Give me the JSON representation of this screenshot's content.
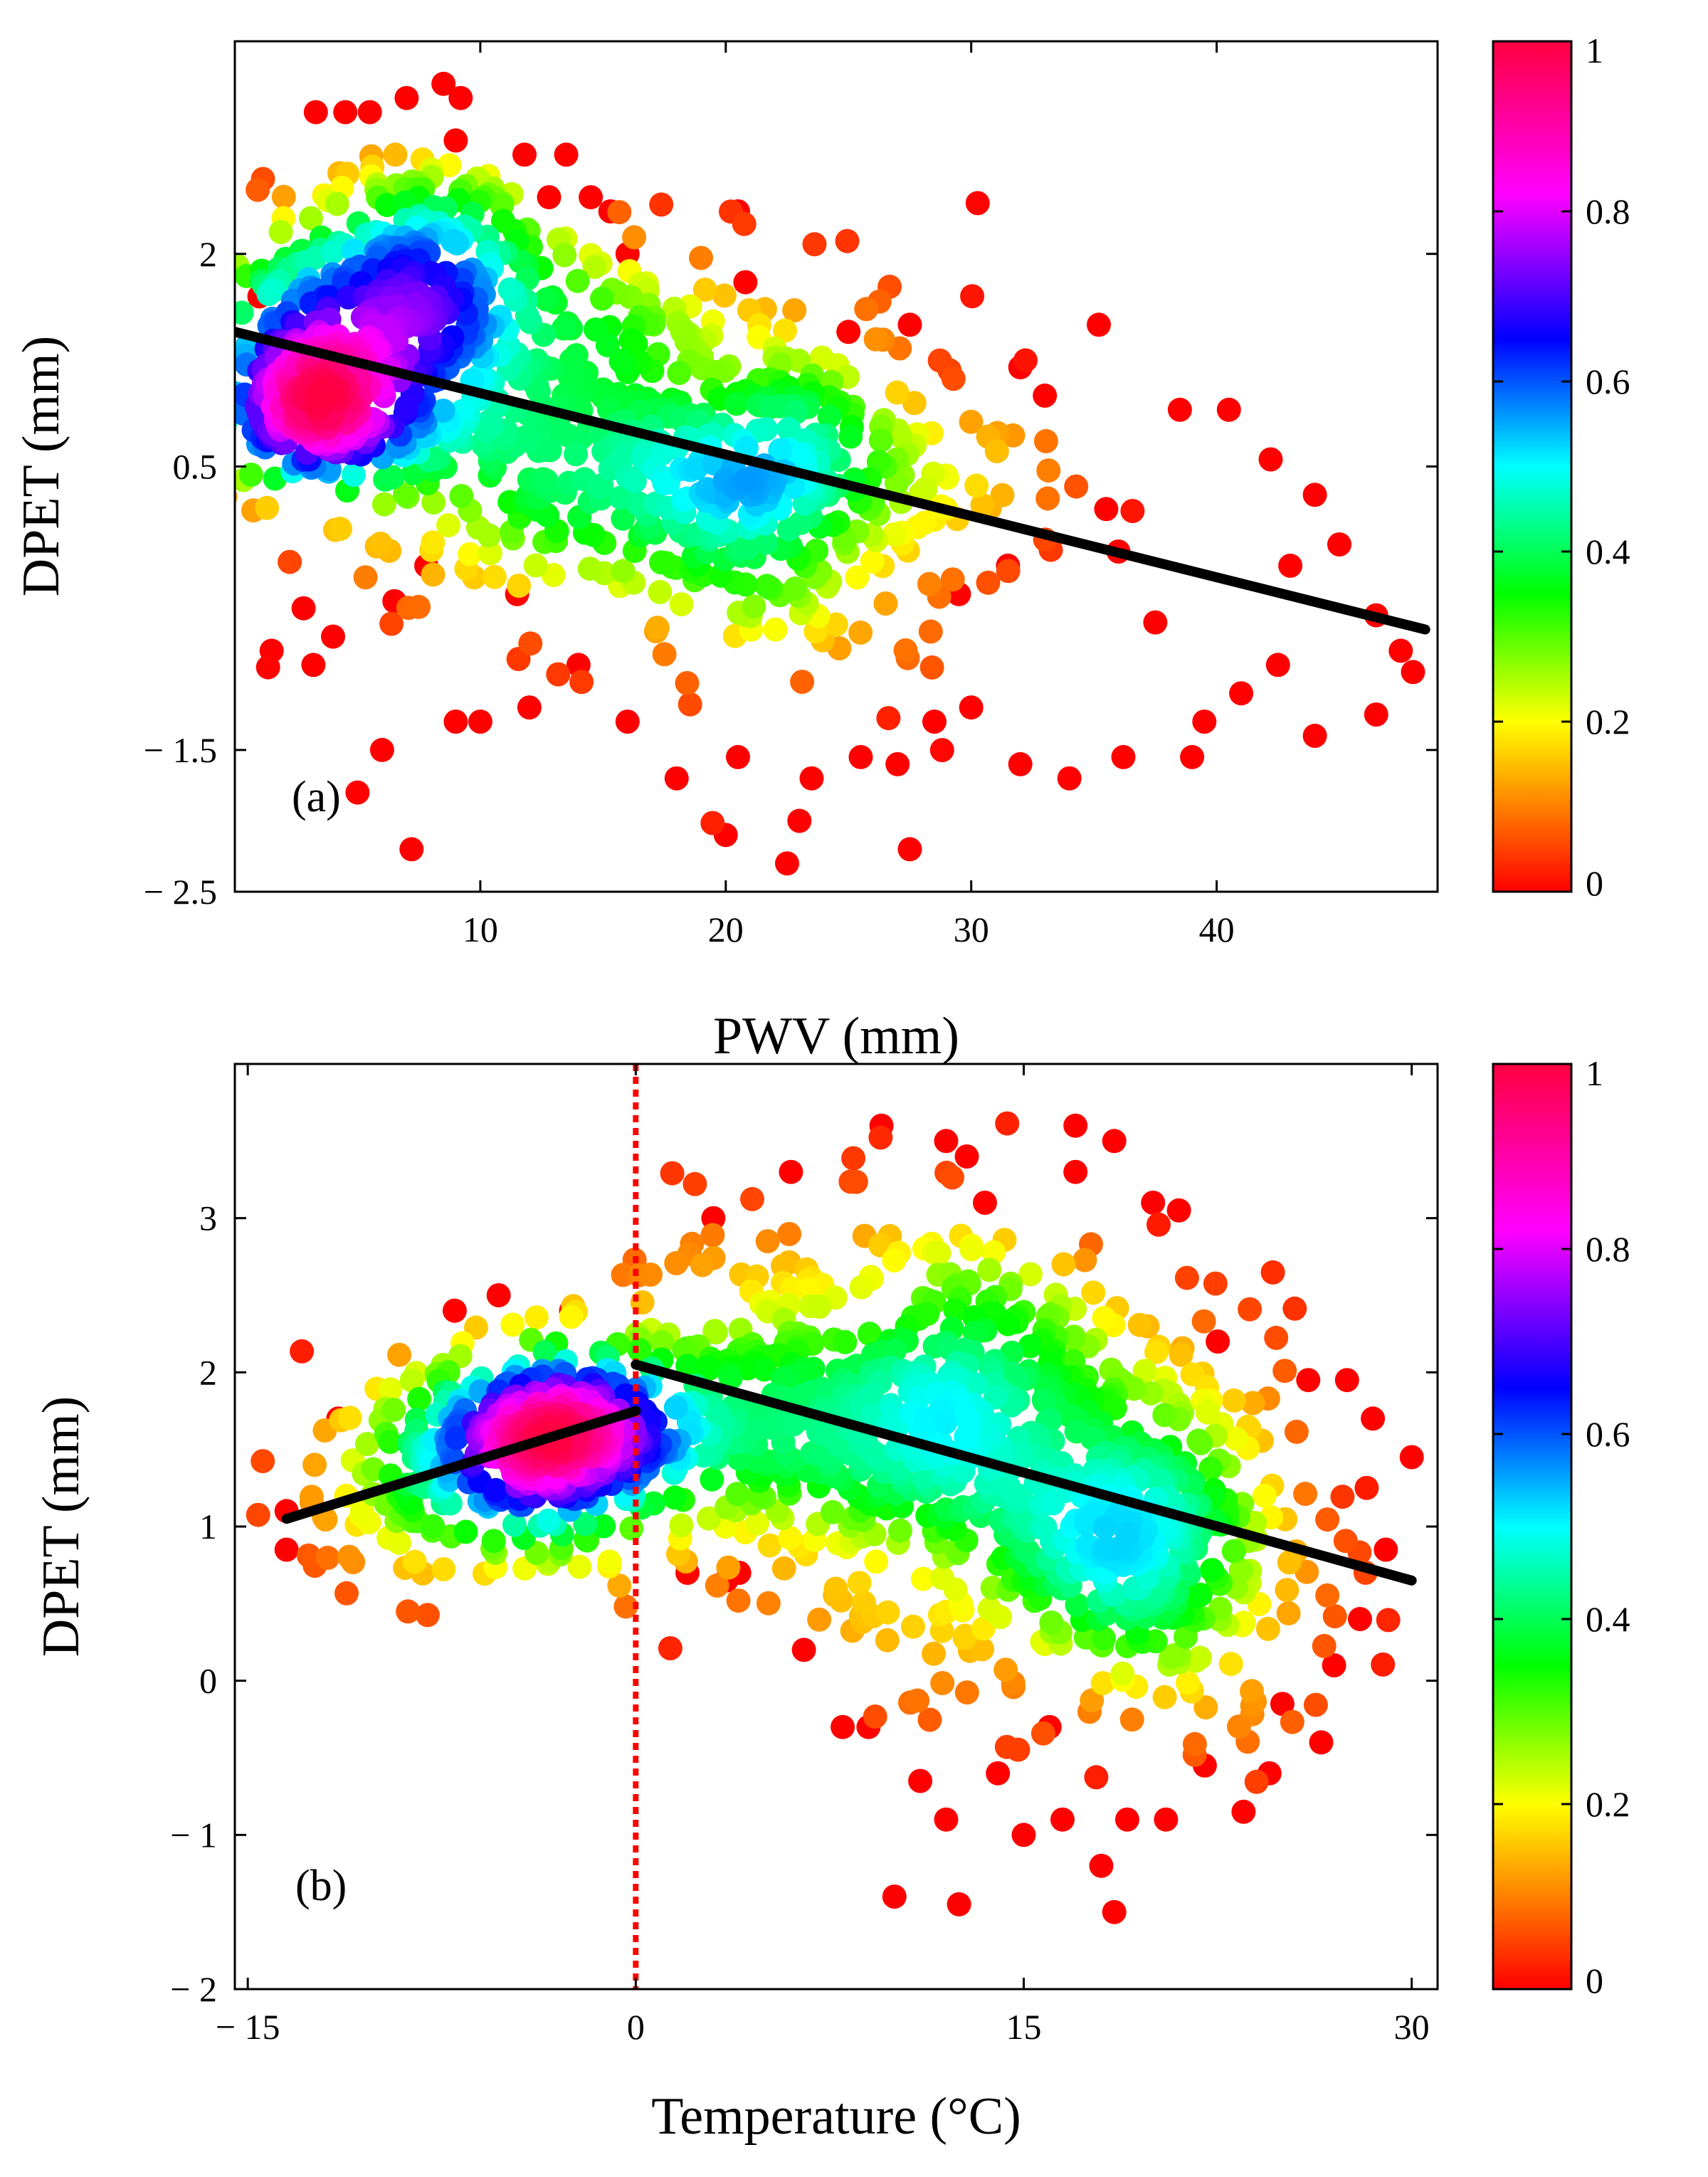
{
  "figure": {
    "colorbar_ticks": [
      "0",
      "0.2",
      "0.4",
      "0.6",
      "0.8",
      "1"
    ]
  },
  "colorbar": {
    "stops": [
      {
        "v": 0.0,
        "c": "#ff0000"
      },
      {
        "v": 0.1,
        "c": "#ff8000"
      },
      {
        "v": 0.2,
        "c": "#ffff00"
      },
      {
        "v": 0.35,
        "c": "#00ff00"
      },
      {
        "v": 0.5,
        "c": "#00ffff"
      },
      {
        "v": 0.65,
        "c": "#0000ff"
      },
      {
        "v": 0.82,
        "c": "#ff00ff"
      },
      {
        "v": 1.0,
        "c": "#ff0040"
      }
    ]
  },
  "chart_data": [
    {
      "type": "scatter",
      "panel": "(a)",
      "xlabel": "PWV (mm)",
      "ylabel": "DPET (mm)",
      "xlim": [
        0,
        49
      ],
      "ylim": [
        -2.5,
        3.5
      ],
      "xticks": [
        10,
        20,
        30,
        40
      ],
      "xtick_labels": [
        "10",
        "20",
        "30",
        "40"
      ],
      "yticks": [
        2,
        0.5,
        -1.5,
        -2.5
      ],
      "ytick_labels": [
        "2",
        "0.5",
        "− 1.5",
        "− 2.5"
      ],
      "color_scale": "point density (0–1)",
      "fit_lines": [
        {
          "x": [
            0,
            48.5
          ],
          "y": [
            1.45,
            -0.65
          ]
        }
      ],
      "clusters": [
        {
          "cx": 6,
          "cy": 1.6,
          "sx": 3,
          "sy": 0.6,
          "n": 220
        },
        {
          "cx": 12,
          "cy": 0.9,
          "sx": 6,
          "sy": 0.6,
          "n": 380
        },
        {
          "cx": 22,
          "cy": 0.3,
          "sx": 5,
          "sy": 0.6,
          "n": 320
        },
        {
          "cx": 8,
          "cy": 2.0,
          "sx": 3,
          "sy": 0.4,
          "n": 90
        }
      ],
      "core": {
        "cx": 3.2,
        "cy": 1.0,
        "sx": 1.4,
        "sy": 0.25,
        "n": 170
      },
      "outliers": [
        [
          1.0,
          1.7
        ],
        [
          3.3,
          3.0
        ],
        [
          4.5,
          3.0
        ],
        [
          5.5,
          3.0
        ],
        [
          7.0,
          3.1
        ],
        [
          8.5,
          3.2
        ],
        [
          9.2,
          3.1
        ],
        [
          9.0,
          2.8
        ],
        [
          11.8,
          2.7
        ],
        [
          13.5,
          2.7
        ],
        [
          14.5,
          2.4
        ],
        [
          15.3,
          2.3
        ],
        [
          12.8,
          2.4
        ],
        [
          20.5,
          2.3
        ],
        [
          20.8,
          1.8
        ],
        [
          16,
          2.0
        ],
        [
          25,
          1.45
        ],
        [
          27.5,
          1.5
        ],
        [
          32,
          1.2
        ],
        [
          33,
          1.0
        ],
        [
          35.2,
          1.5
        ],
        [
          38.5,
          0.9
        ],
        [
          40.5,
          0.9
        ],
        [
          42.2,
          0.55
        ],
        [
          44,
          0.3
        ],
        [
          45,
          -0.05
        ],
        [
          46.5,
          -0.55
        ],
        [
          47.5,
          -0.8
        ],
        [
          48,
          -0.95
        ],
        [
          44,
          -1.4
        ],
        [
          42.5,
          -0.9
        ],
        [
          41,
          -1.1
        ],
        [
          39,
          -1.55
        ],
        [
          34,
          -1.7
        ],
        [
          32,
          -1.6
        ],
        [
          30,
          -1.2
        ],
        [
          28.5,
          -1.3
        ],
        [
          27.5,
          -2.2
        ],
        [
          27,
          -1.6
        ],
        [
          25.5,
          -1.55
        ],
        [
          23.5,
          -1.7
        ],
        [
          23,
          -2.0
        ],
        [
          22.5,
          -2.3
        ],
        [
          20.5,
          -1.55
        ],
        [
          20,
          -2.1
        ],
        [
          18,
          -1.7
        ],
        [
          16,
          -1.3
        ],
        [
          14,
          -0.9
        ],
        [
          12,
          -1.2
        ],
        [
          10,
          -1.3
        ],
        [
          9,
          -1.3
        ],
        [
          6,
          -1.5
        ],
        [
          5,
          -1.8
        ],
        [
          4,
          -0.7
        ],
        [
          3.2,
          -0.9
        ],
        [
          1.5,
          -0.8
        ],
        [
          2.8,
          -0.5
        ],
        [
          7.2,
          -2.2
        ],
        [
          7.8,
          -0.2
        ],
        [
          6.5,
          -0.45
        ],
        [
          11.5,
          -0.4
        ],
        [
          36,
          -0.1
        ],
        [
          37.5,
          -0.6
        ],
        [
          39.5,
          -1.3
        ],
        [
          29.5,
          -0.4
        ],
        [
          31.5,
          -0.2
        ],
        [
          35.5,
          0.2
        ],
        [
          43,
          -0.2
        ],
        [
          46.5,
          -1.25
        ],
        [
          36.2,
          -1.55
        ]
      ]
    },
    {
      "type": "scatter",
      "panel": "(b)",
      "xlabel": "Temperature (°C)",
      "ylabel": "DPET (mm)",
      "xlim": [
        -15.5,
        31
      ],
      "ylim": [
        -2,
        4
      ],
      "xticks": [
        -15,
        0,
        15,
        30
      ],
      "xtick_labels": [
        "− 15",
        "0",
        "15",
        "30"
      ],
      "yticks": [
        3,
        2,
        1,
        0,
        -1,
        -2
      ],
      "ytick_labels": [
        "3",
        "2",
        "1",
        "0",
        "− 1",
        "− 2"
      ],
      "color_scale": "point density (0–1)",
      "reference_line_x": 0,
      "reference_line_color": "#ff0000",
      "fit_lines": [
        {
          "x": [
            -13.5,
            0
          ],
          "y": [
            1.05,
            1.75
          ]
        },
        {
          "x": [
            0,
            30
          ],
          "y": [
            2.05,
            0.65
          ]
        }
      ],
      "clusters": [
        {
          "cx": -3,
          "cy": 1.55,
          "sx": 3,
          "sy": 0.35,
          "n": 260
        },
        {
          "cx": 6,
          "cy": 1.8,
          "sx": 4,
          "sy": 0.6,
          "n": 320
        },
        {
          "cx": 14,
          "cy": 1.6,
          "sx": 4,
          "sy": 0.7,
          "n": 360
        },
        {
          "cx": 20,
          "cy": 0.9,
          "sx": 3.5,
          "sy": 0.6,
          "n": 320
        },
        {
          "cx": -9,
          "cy": 1.3,
          "sx": 2.5,
          "sy": 0.35,
          "n": 90
        }
      ],
      "core": {
        "cx": -3.5,
        "cy": 1.55,
        "sx": 1.8,
        "sy": 0.18,
        "n": 150
      },
      "outliers": [
        [
          -13.5,
          1.1
        ],
        [
          -13.5,
          0.85
        ],
        [
          -11.5,
          1.7
        ],
        [
          -7,
          2.4
        ],
        [
          -5.3,
          2.5
        ],
        [
          -2.5,
          2.4
        ],
        [
          9.5,
          3.6
        ],
        [
          12,
          3.5
        ],
        [
          12.8,
          3.4
        ],
        [
          17,
          3.6
        ],
        [
          18.5,
          3.5
        ],
        [
          17,
          3.3
        ],
        [
          20,
          3.1
        ],
        [
          21,
          3.05
        ],
        [
          22.5,
          2.2
        ],
        [
          26,
          1.95
        ],
        [
          27.5,
          1.95
        ],
        [
          28.5,
          1.7
        ],
        [
          30,
          1.45
        ],
        [
          29,
          0.85
        ],
        [
          27,
          0.1
        ],
        [
          26.5,
          -0.4
        ],
        [
          24.5,
          -0.6
        ],
        [
          23.5,
          -0.85
        ],
        [
          20.5,
          -0.9
        ],
        [
          19,
          -0.9
        ],
        [
          18.5,
          -1.5
        ],
        [
          18,
          -1.2
        ],
        [
          16.5,
          -0.9
        ],
        [
          15,
          -1.0
        ],
        [
          12.5,
          -1.45
        ],
        [
          12,
          -0.9
        ],
        [
          10,
          -1.4
        ],
        [
          11,
          -0.65
        ],
        [
          9,
          -0.3
        ],
        [
          8,
          -0.3
        ],
        [
          6.5,
          0.2
        ],
        [
          4,
          0.7
        ],
        [
          3.5,
          0.65
        ],
        [
          2,
          0.7
        ],
        [
          6,
          3.3
        ],
        [
          3,
          3.0
        ],
        [
          14,
          -0.6
        ],
        [
          16,
          -0.3
        ],
        [
          22,
          -0.55
        ],
        [
          25,
          -0.15
        ],
        [
          28,
          0.4
        ],
        [
          13.5,
          3.1
        ]
      ]
    }
  ]
}
